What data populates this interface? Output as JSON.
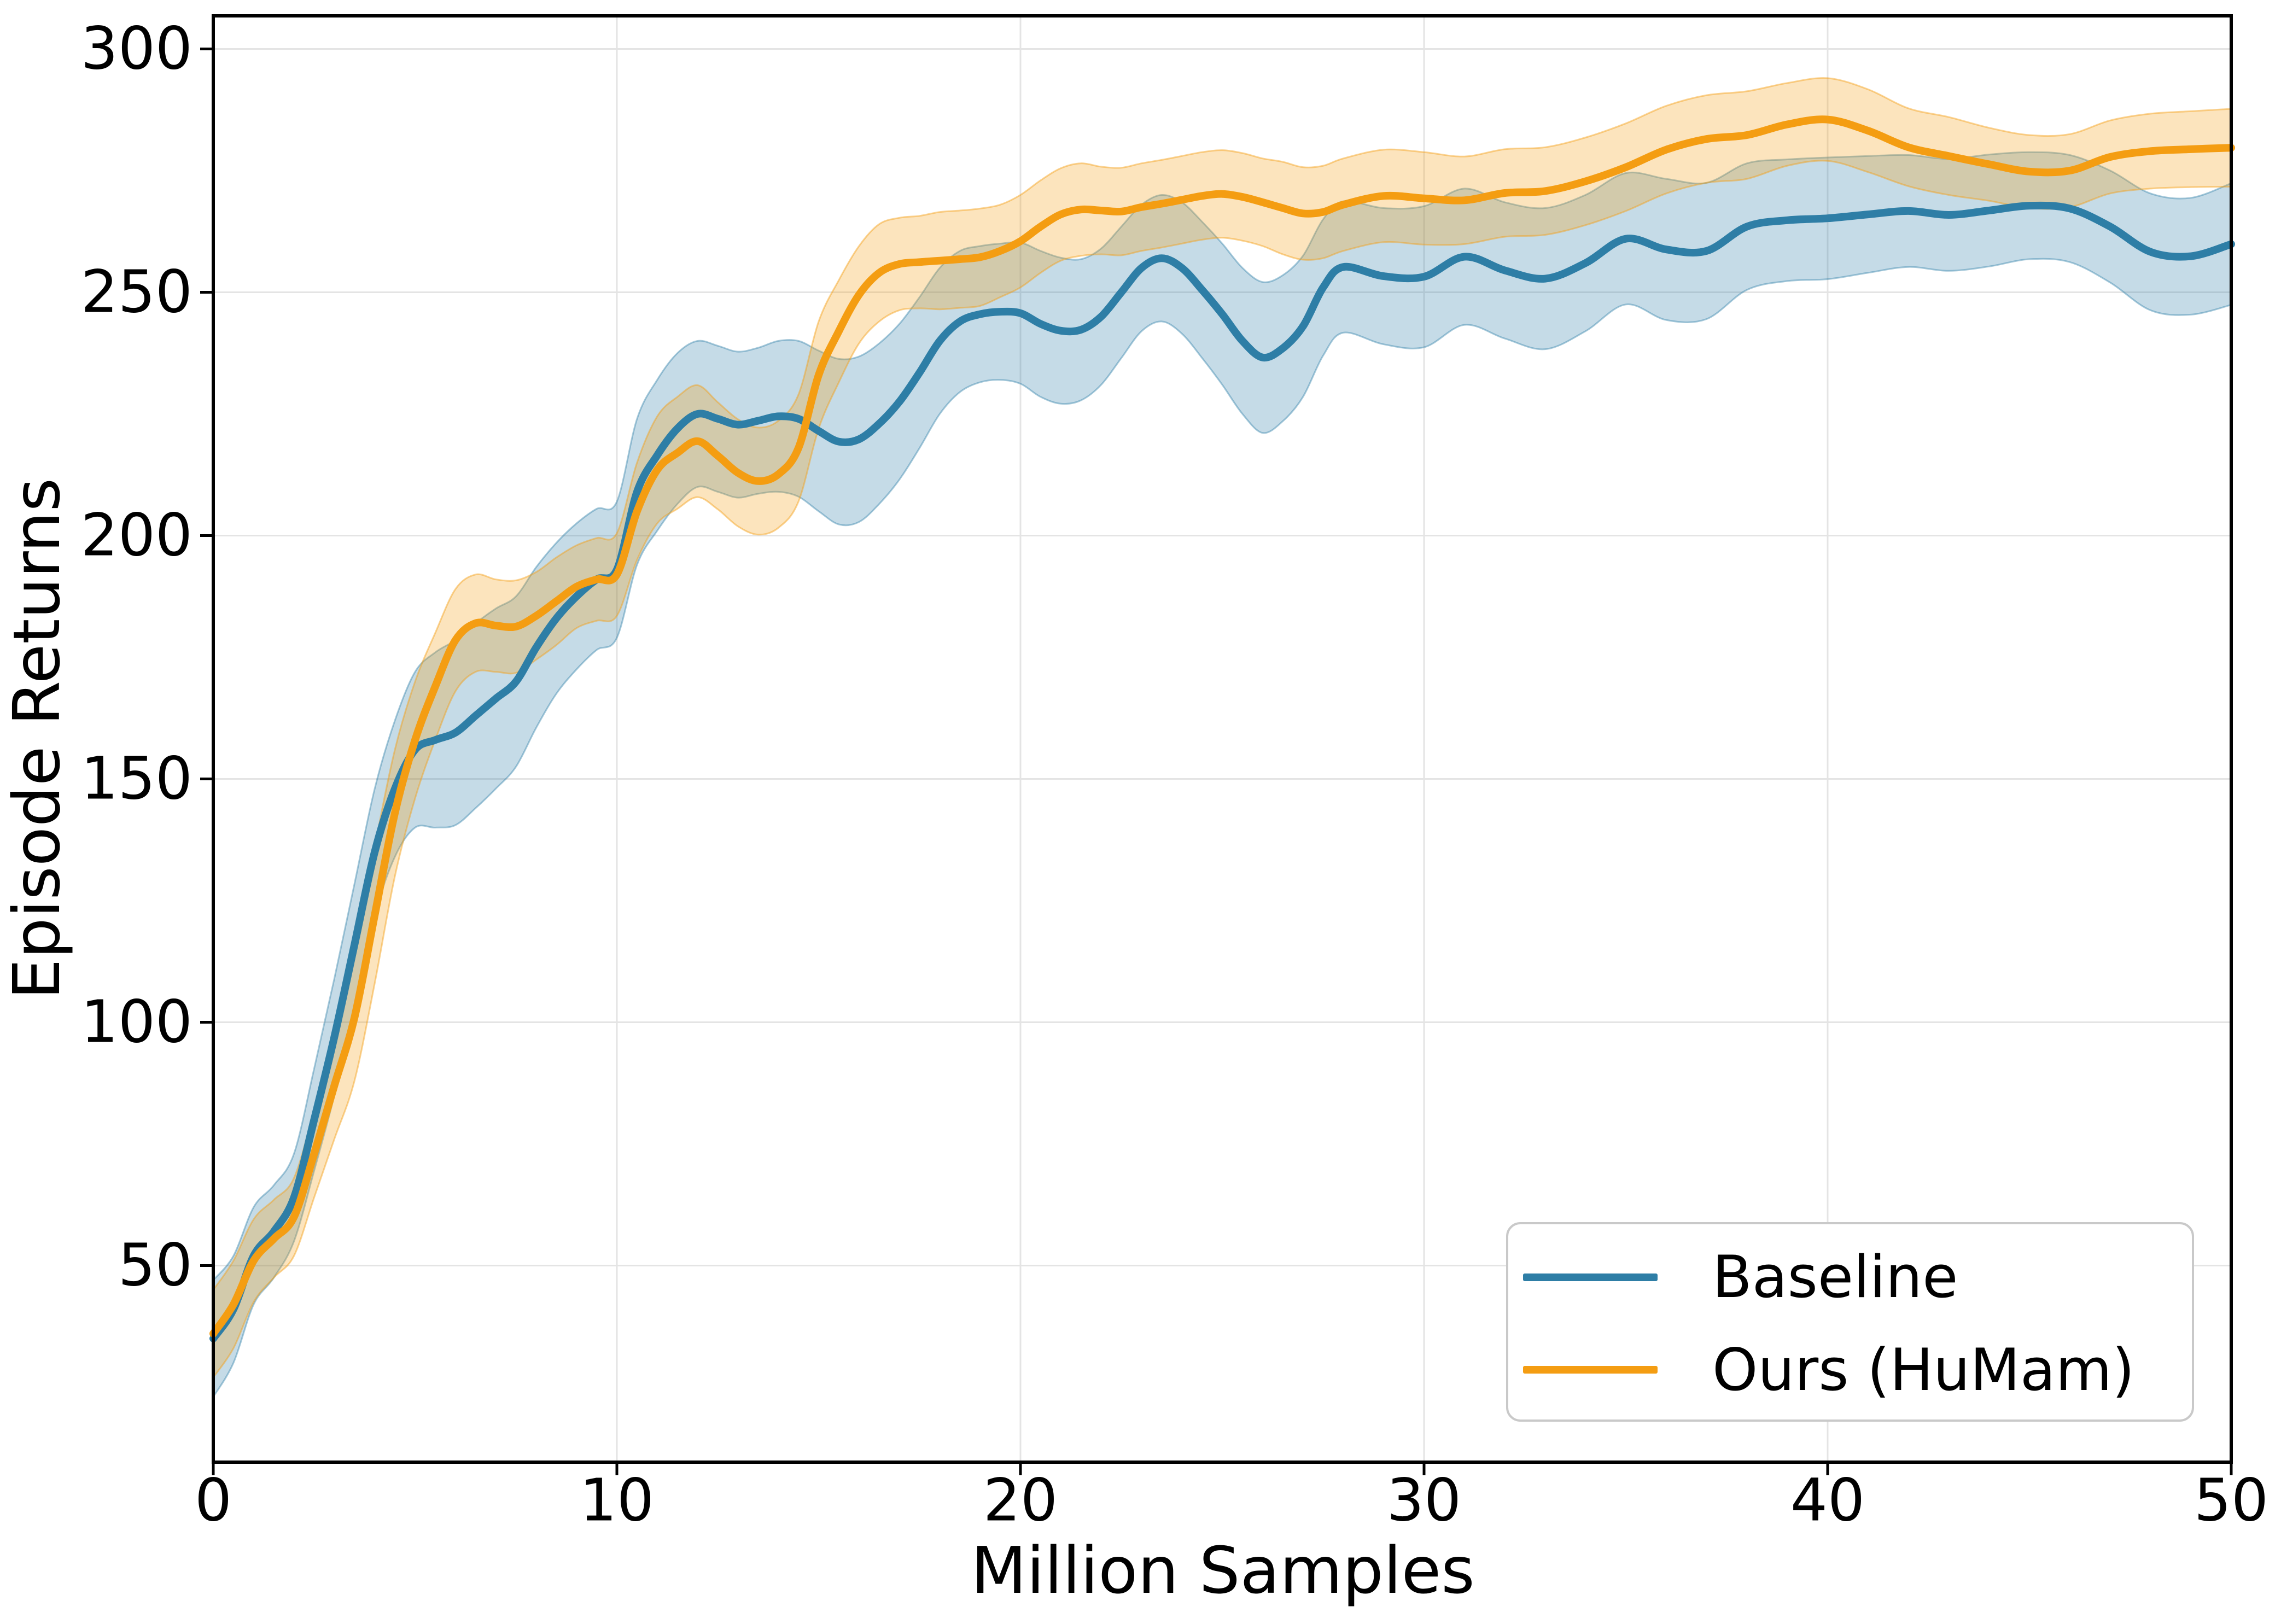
{
  "chart_data": {
    "type": "line",
    "title": "",
    "xlabel": "Million Samples",
    "ylabel": "Episode Returns",
    "xlim": [
      0,
      50
    ],
    "ylim": [
      9.6,
      306.8
    ],
    "xticks": [
      0,
      10,
      20,
      30,
      40,
      50
    ],
    "yticks": [
      50,
      100,
      150,
      200,
      250,
      300
    ],
    "grid": true,
    "legend_position": "lower right",
    "grid_color": "#e4e4e4",
    "x": [
      0,
      0.5,
      1,
      1.5,
      2,
      2.5,
      3,
      3.5,
      4,
      4.5,
      5,
      5.5,
      6,
      6.5,
      7,
      7.5,
      8,
      8.5,
      9,
      9.5,
      10,
      10.5,
      11,
      11.5,
      12,
      12.5,
      13,
      13.5,
      14,
      14.5,
      15,
      15.5,
      16,
      16.5,
      17,
      17.5,
      18,
      18.5,
      19,
      19.5,
      20,
      20.5,
      21,
      21.5,
      22,
      22.5,
      23,
      23.5,
      24,
      24.5,
      25,
      25.5,
      26,
      26.5,
      27,
      27.5,
      28,
      29,
      30,
      31,
      32,
      33,
      34,
      35,
      36,
      37,
      38,
      39,
      40,
      41,
      42,
      43,
      44,
      45,
      46,
      47,
      48,
      49,
      50
    ],
    "series": [
      {
        "name": "Baseline",
        "color": "#2e7ea6",
        "band_fill": "rgba(46,126,168,0.28)",
        "band_edge": "rgba(46,126,168,0.42)",
        "mean": [
          35,
          41,
          52,
          57,
          64,
          80,
          97,
          116,
          135,
          148,
          156,
          158,
          159.5,
          163,
          166.5,
          170,
          177,
          183,
          187.5,
          191,
          193,
          209,
          216.5,
          222,
          225,
          224,
          222.8,
          223.6,
          224.5,
          224,
          221.5,
          219.3,
          219.8,
          223,
          227.5,
          233.5,
          240,
          244,
          245.5,
          246,
          245.7,
          243.5,
          242.1,
          242.3,
          245,
          250,
          255,
          257,
          255,
          250.5,
          245.5,
          240,
          236.6,
          238.5,
          243,
          251,
          255.2,
          253.3,
          253.2,
          257.3,
          254.5,
          252.8,
          256,
          261,
          258.8,
          258.5,
          263.5,
          264.8,
          265.2,
          266,
          266.7,
          265.9,
          266.8,
          267.8,
          267.2,
          263.5,
          258.3,
          257.4,
          259.9
        ],
        "halfwidth": [
          12,
          11,
          10,
          9.5,
          9,
          10.5,
          12,
          12.5,
          13,
          14,
          16,
          18,
          19,
          19,
          18.5,
          17.5,
          16.5,
          15.5,
          15,
          14.5,
          14,
          15,
          15.5,
          15.5,
          15,
          15,
          15,
          15,
          15.5,
          16,
          16.5,
          17,
          17,
          16.5,
          16,
          15.5,
          15,
          14.5,
          14,
          14,
          14.5,
          15,
          15,
          14.5,
          14,
          13.5,
          13,
          13,
          13.5,
          14,
          14.5,
          15,
          15.5,
          15,
          14.5,
          14,
          13.5,
          14,
          14.5,
          14,
          14,
          14.5,
          14,
          13.5,
          14.5,
          14,
          13,
          12.5,
          12.5,
          12,
          11.5,
          11.5,
          11.5,
          11,
          11,
          11.5,
          12,
          12,
          12.5
        ]
      },
      {
        "name": "Ours (HuMam)",
        "color": "#f49d12",
        "band_fill": "rgba(244,157,18,0.28)",
        "band_edge": "rgba(244,157,18,0.45)",
        "mean": [
          36,
          42,
          51,
          55.5,
          60,
          73,
          87,
          101,
          122,
          143,
          158,
          169,
          178.5,
          182,
          181.5,
          181.3,
          183.5,
          186.5,
          189.5,
          191,
          192,
          205,
          213.5,
          217,
          219.4,
          216.4,
          212.9,
          211.2,
          212.6,
          218,
          233,
          242,
          249.5,
          254,
          255.8,
          256.2,
          256.5,
          256.8,
          257.2,
          258.5,
          260.5,
          263.5,
          266,
          267,
          266.8,
          266.6,
          267.5,
          268.2,
          269,
          269.8,
          270.2,
          269.6,
          268.5,
          267.3,
          266.2,
          266.5,
          268,
          269.8,
          269.3,
          268.9,
          270.4,
          270.8,
          272.8,
          275.7,
          279.3,
          281.5,
          282.3,
          284.5,
          285.5,
          283.2,
          279.8,
          278,
          276.3,
          274.8,
          275,
          277.8,
          279,
          279.4,
          279.7
        ],
        "halfwidth": [
          9,
          9,
          8.5,
          8,
          8,
          9,
          11,
          13,
          14,
          13,
          12,
          11,
          10.5,
          10,
          9.5,
          9.5,
          9,
          9,
          8.5,
          8.5,
          8.5,
          10,
          11,
          11.5,
          11.5,
          11,
          11,
          11,
          11,
          11,
          11,
          10.5,
          10,
          10,
          9.5,
          9.5,
          10,
          10,
          10,
          9.5,
          9.5,
          9.5,
          9.5,
          9.5,
          9,
          9,
          9,
          9,
          9,
          9,
          9,
          9,
          9,
          9.5,
          9.5,
          9.5,
          9.5,
          9.5,
          9.5,
          9,
          9,
          9,
          9,
          9,
          9,
          9,
          9,
          8.5,
          8.5,
          8.5,
          8,
          8,
          7.5,
          7.5,
          7.5,
          7.5,
          7.7,
          7.8,
          8
        ]
      }
    ]
  },
  "legend": {
    "items": [
      {
        "label": "Baseline"
      },
      {
        "label": "Ours (HuMam)"
      }
    ]
  }
}
